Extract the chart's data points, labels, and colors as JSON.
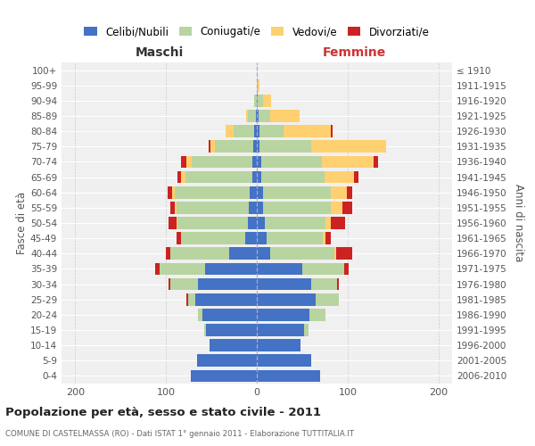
{
  "age_groups": [
    "0-4",
    "5-9",
    "10-14",
    "15-19",
    "20-24",
    "25-29",
    "30-34",
    "35-39",
    "40-44",
    "45-49",
    "50-54",
    "55-59",
    "60-64",
    "65-69",
    "70-74",
    "75-79",
    "80-84",
    "85-89",
    "90-94",
    "95-99",
    "100+"
  ],
  "birth_years": [
    "2006-2010",
    "2001-2005",
    "1996-2000",
    "1991-1995",
    "1986-1990",
    "1981-1985",
    "1976-1980",
    "1971-1975",
    "1966-1970",
    "1961-1965",
    "1956-1960",
    "1951-1955",
    "1946-1950",
    "1941-1945",
    "1936-1940",
    "1931-1935",
    "1926-1930",
    "1921-1925",
    "1916-1920",
    "1911-1915",
    "≤ 1910"
  ],
  "m_cel": [
    73,
    66,
    52,
    56,
    60,
    68,
    65,
    57,
    30,
    13,
    10,
    9,
    8,
    5,
    5,
    4,
    3,
    1,
    0,
    0,
    0
  ],
  "m_con": [
    0,
    0,
    0,
    2,
    5,
    8,
    30,
    50,
    65,
    70,
    77,
    79,
    82,
    74,
    67,
    42,
    23,
    9,
    3,
    0,
    0
  ],
  "m_ved": [
    0,
    0,
    0,
    0,
    0,
    0,
    0,
    0,
    0,
    0,
    1,
    2,
    3,
    4,
    6,
    5,
    8,
    2,
    0,
    0,
    0
  ],
  "m_div": [
    0,
    0,
    0,
    0,
    0,
    2,
    2,
    5,
    5,
    5,
    9,
    5,
    5,
    4,
    5,
    2,
    0,
    0,
    0,
    0,
    0
  ],
  "f_cel": [
    70,
    60,
    48,
    52,
    58,
    65,
    60,
    50,
    15,
    11,
    9,
    7,
    7,
    5,
    5,
    3,
    3,
    2,
    1,
    0,
    0
  ],
  "f_con": [
    0,
    0,
    0,
    5,
    18,
    25,
    28,
    46,
    70,
    62,
    67,
    74,
    74,
    70,
    67,
    57,
    26,
    13,
    6,
    1,
    0
  ],
  "f_ved": [
    0,
    0,
    0,
    0,
    0,
    0,
    0,
    0,
    2,
    3,
    5,
    13,
    18,
    32,
    57,
    82,
    52,
    32,
    9,
    2,
    0
  ],
  "f_div": [
    0,
    0,
    0,
    0,
    0,
    0,
    2,
    5,
    18,
    5,
    16,
    11,
    6,
    5,
    5,
    0,
    2,
    0,
    0,
    0,
    0
  ],
  "color_cel": "#4472C4",
  "color_con": "#B8D4A0",
  "color_ved": "#FFD070",
  "color_div": "#CC2222",
  "title": "Popolazione per età, sesso e stato civile - 2011",
  "subtitle": "COMUNE DI CASTELMASSA (RO) - Dati ISTAT 1° gennaio 2011 - Elaborazione TUTTITALIA.IT",
  "legend_labels": [
    "Celibi/Nubili",
    "Coniugati/e",
    "Vedovi/e",
    "Divorziati/e"
  ],
  "maschi_label": "Maschi",
  "femmine_label": "Femmine",
  "ylabel_left": "Fasce di età",
  "ylabel_right": "Anni di nascita",
  "bg_color": "#f0f0f0",
  "grid_color": "#dddddd"
}
